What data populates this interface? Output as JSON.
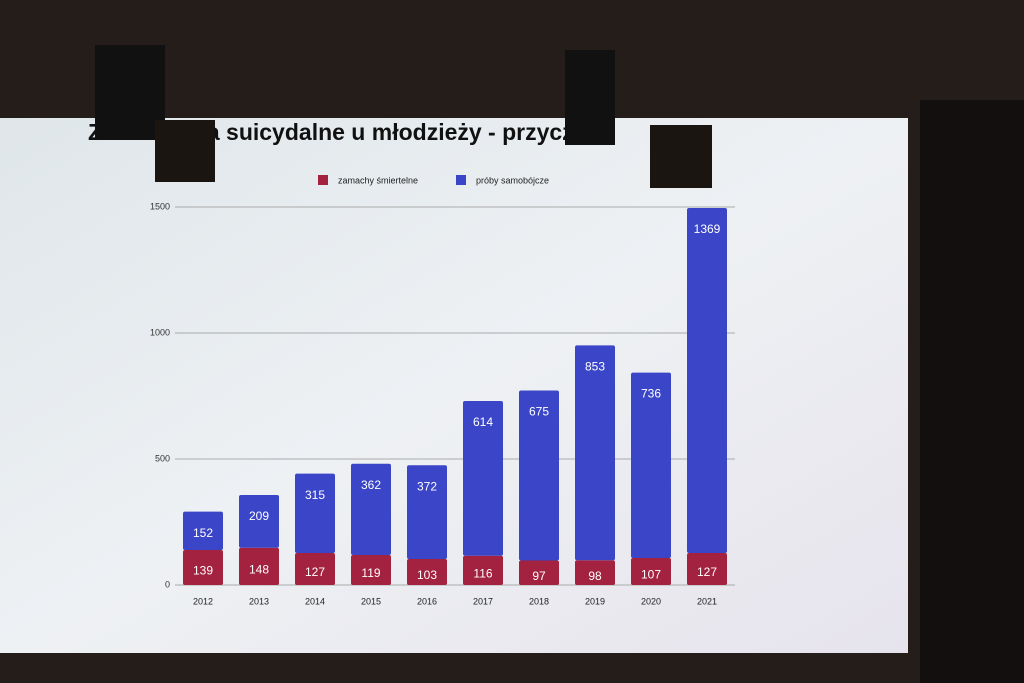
{
  "chart_data": {
    "type": "stacked-bar",
    "title": "Zachowania suicydalne u młodzieży - przyczyny",
    "categories": [
      "2012",
      "2013",
      "2014",
      "2015",
      "2016",
      "2017",
      "2018",
      "2019",
      "2020",
      "2021"
    ],
    "series": [
      {
        "name": "zamachy śmiertelne",
        "color": "#a3223f",
        "values": [
          139,
          148,
          127,
          119,
          103,
          116,
          97,
          98,
          107,
          127
        ]
      },
      {
        "name": "próby samobójcze",
        "color": "#3a45c8",
        "values": [
          152,
          209,
          315,
          362,
          372,
          614,
          675,
          853,
          736,
          1369
        ]
      }
    ],
    "ylim": [
      0,
      1500
    ],
    "yticks": [
      0,
      500,
      1000,
      1500
    ],
    "grid": true,
    "legend": "top"
  }
}
